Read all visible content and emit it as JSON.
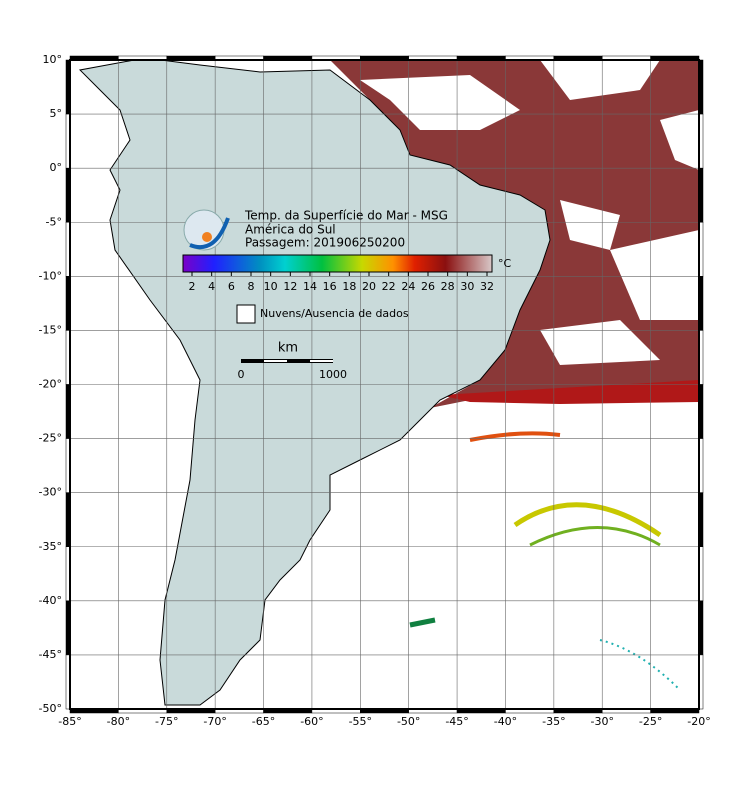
{
  "title": [
    "Temp. da Superfície do Mar - MSG",
    "América do Sul",
    "Passagem: 201906250200"
  ],
  "colorbar": {
    "unit": "°C",
    "ticks": [
      "2",
      "4",
      "6",
      "8",
      "10",
      "12",
      "14",
      "16",
      "18",
      "20",
      "22",
      "24",
      "26",
      "28",
      "30",
      "32"
    ]
  },
  "legend": "Nuvens/Ausencia de dados",
  "scale_bar": {
    "unit": "km",
    "start": "0",
    "end": "1000"
  },
  "lon_labels": [
    "-85°",
    "-80°",
    "-75°",
    "-70°",
    "-65°",
    "-60°",
    "-55°",
    "-50°",
    "-45°",
    "-40°",
    "-35°",
    "-30°",
    "-25°",
    "-20°"
  ],
  "lat_labels": [
    "10°",
    "5°",
    "0°",
    "-5°",
    "-10°",
    "-15°",
    "-20°",
    "-25°",
    "-30°",
    "-35°",
    "-40°",
    "-45°",
    "-50°"
  ]
}
